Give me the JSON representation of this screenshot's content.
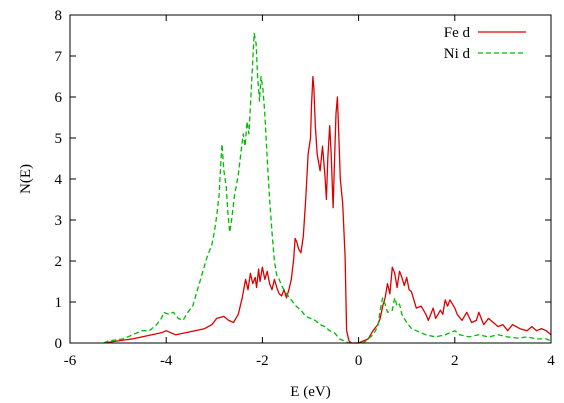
{
  "chart_data": {
    "type": "line",
    "title": "",
    "xlabel": "E (eV)",
    "ylabel": "N(E)",
    "xlim": [
      -6,
      4
    ],
    "ylim": [
      0,
      8
    ],
    "xticks": [
      -6,
      -4,
      -2,
      0,
      2,
      4
    ],
    "yticks": [
      0,
      1,
      2,
      3,
      4,
      5,
      6,
      7,
      8
    ],
    "xtick_labels": [
      "-6",
      "-4",
      "-2",
      "0",
      "2",
      "4"
    ],
    "ytick_labels": [
      "0",
      "1",
      "2",
      "3",
      "4",
      "5",
      "6",
      "7",
      "8"
    ],
    "grid": false,
    "legend_position": "top-right",
    "series": [
      {
        "name": "Fe d",
        "color": "#dd0000",
        "dash": "solid",
        "points": [
          [
            -5.3,
            0.0
          ],
          [
            -5.0,
            0.05
          ],
          [
            -4.7,
            0.1
          ],
          [
            -4.5,
            0.15
          ],
          [
            -4.3,
            0.2
          ],
          [
            -4.1,
            0.25
          ],
          [
            -4.0,
            0.3
          ],
          [
            -3.9,
            0.25
          ],
          [
            -3.8,
            0.2
          ],
          [
            -3.6,
            0.25
          ],
          [
            -3.4,
            0.3
          ],
          [
            -3.2,
            0.35
          ],
          [
            -3.05,
            0.45
          ],
          [
            -2.95,
            0.6
          ],
          [
            -2.8,
            0.65
          ],
          [
            -2.7,
            0.55
          ],
          [
            -2.6,
            0.5
          ],
          [
            -2.5,
            0.7
          ],
          [
            -2.42,
            1.1
          ],
          [
            -2.35,
            1.55
          ],
          [
            -2.3,
            1.3
          ],
          [
            -2.25,
            1.7
          ],
          [
            -2.2,
            1.45
          ],
          [
            -2.15,
            1.6
          ],
          [
            -2.12,
            1.35
          ],
          [
            -2.08,
            1.8
          ],
          [
            -2.05,
            1.5
          ],
          [
            -2.0,
            1.85
          ],
          [
            -1.95,
            1.55
          ],
          [
            -1.9,
            1.75
          ],
          [
            -1.85,
            1.45
          ],
          [
            -1.8,
            1.3
          ],
          [
            -1.75,
            1.55
          ],
          [
            -1.7,
            1.35
          ],
          [
            -1.65,
            1.2
          ],
          [
            -1.6,
            1.15
          ],
          [
            -1.55,
            1.3
          ],
          [
            -1.5,
            1.1
          ],
          [
            -1.45,
            1.3
          ],
          [
            -1.4,
            1.55
          ],
          [
            -1.35,
            2.05
          ],
          [
            -1.32,
            2.55
          ],
          [
            -1.28,
            2.45
          ],
          [
            -1.25,
            2.3
          ],
          [
            -1.2,
            2.2
          ],
          [
            -1.15,
            2.6
          ],
          [
            -1.1,
            3.5
          ],
          [
            -1.05,
            4.6
          ],
          [
            -1.0,
            5.0
          ],
          [
            -0.98,
            5.8
          ],
          [
            -0.95,
            6.5
          ],
          [
            -0.93,
            6.2
          ],
          [
            -0.9,
            5.3
          ],
          [
            -0.86,
            4.6
          ],
          [
            -0.8,
            4.2
          ],
          [
            -0.75,
            4.8
          ],
          [
            -0.7,
            4.1
          ],
          [
            -0.67,
            3.5
          ],
          [
            -0.64,
            4.5
          ],
          [
            -0.6,
            5.3
          ],
          [
            -0.57,
            4.6
          ],
          [
            -0.53,
            3.3
          ],
          [
            -0.5,
            4.5
          ],
          [
            -0.47,
            5.6
          ],
          [
            -0.44,
            6.0
          ],
          [
            -0.41,
            5.0
          ],
          [
            -0.38,
            4.0
          ],
          [
            -0.33,
            3.4
          ],
          [
            -0.28,
            2.1
          ],
          [
            -0.25,
            0.3
          ],
          [
            -0.2,
            0.05
          ],
          [
            -0.15,
            0.0
          ],
          [
            0.0,
            0.0
          ],
          [
            0.2,
            0.1
          ],
          [
            0.3,
            0.3
          ],
          [
            0.4,
            0.45
          ],
          [
            0.45,
            0.6
          ],
          [
            0.5,
            0.9
          ],
          [
            0.55,
            1.1
          ],
          [
            0.6,
            1.45
          ],
          [
            0.65,
            1.2
          ],
          [
            0.7,
            1.85
          ],
          [
            0.75,
            1.7
          ],
          [
            0.8,
            1.35
          ],
          [
            0.85,
            1.75
          ],
          [
            0.9,
            1.6
          ],
          [
            0.95,
            1.4
          ],
          [
            1.0,
            1.6
          ],
          [
            1.05,
            1.3
          ],
          [
            1.1,
            1.25
          ],
          [
            1.2,
            0.85
          ],
          [
            1.3,
            0.9
          ],
          [
            1.4,
            0.7
          ],
          [
            1.45,
            0.55
          ],
          [
            1.55,
            0.85
          ],
          [
            1.6,
            0.6
          ],
          [
            1.7,
            0.8
          ],
          [
            1.75,
            0.7
          ],
          [
            1.8,
            1.05
          ],
          [
            1.85,
            0.9
          ],
          [
            1.9,
            1.05
          ],
          [
            2.0,
            0.85
          ],
          [
            2.05,
            0.7
          ],
          [
            2.15,
            0.55
          ],
          [
            2.25,
            0.75
          ],
          [
            2.35,
            0.5
          ],
          [
            2.45,
            0.55
          ],
          [
            2.5,
            0.75
          ],
          [
            2.6,
            0.45
          ],
          [
            2.7,
            0.6
          ],
          [
            2.8,
            0.5
          ],
          [
            2.9,
            0.4
          ],
          [
            3.0,
            0.45
          ],
          [
            3.1,
            0.3
          ],
          [
            3.2,
            0.45
          ],
          [
            3.35,
            0.35
          ],
          [
            3.5,
            0.3
          ],
          [
            3.6,
            0.4
          ],
          [
            3.7,
            0.3
          ],
          [
            3.8,
            0.35
          ],
          [
            3.9,
            0.3
          ],
          [
            4.0,
            0.2
          ]
        ]
      },
      {
        "name": "Ni d",
        "color": "#00bb00",
        "dash": "dashed",
        "points": [
          [
            -5.3,
            0.0
          ],
          [
            -5.2,
            0.05
          ],
          [
            -4.9,
            0.1
          ],
          [
            -4.7,
            0.2
          ],
          [
            -4.5,
            0.3
          ],
          [
            -4.35,
            0.3
          ],
          [
            -4.2,
            0.45
          ],
          [
            -4.1,
            0.6
          ],
          [
            -4.05,
            0.75
          ],
          [
            -3.95,
            0.7
          ],
          [
            -3.85,
            0.75
          ],
          [
            -3.75,
            0.6
          ],
          [
            -3.65,
            0.55
          ],
          [
            -3.55,
            0.75
          ],
          [
            -3.45,
            0.9
          ],
          [
            -3.35,
            1.3
          ],
          [
            -3.25,
            1.7
          ],
          [
            -3.15,
            2.1
          ],
          [
            -3.05,
            2.4
          ],
          [
            -3.0,
            2.7
          ],
          [
            -2.95,
            3.1
          ],
          [
            -2.9,
            3.6
          ],
          [
            -2.87,
            4.3
          ],
          [
            -2.84,
            4.85
          ],
          [
            -2.8,
            4.2
          ],
          [
            -2.75,
            3.8
          ],
          [
            -2.72,
            3.2
          ],
          [
            -2.68,
            2.7
          ],
          [
            -2.64,
            3.0
          ],
          [
            -2.58,
            3.6
          ],
          [
            -2.5,
            4.1
          ],
          [
            -2.44,
            4.7
          ],
          [
            -2.4,
            5.1
          ],
          [
            -2.36,
            4.8
          ],
          [
            -2.32,
            5.4
          ],
          [
            -2.28,
            5.1
          ],
          [
            -2.24,
            6.0
          ],
          [
            -2.2,
            6.9
          ],
          [
            -2.17,
            7.55
          ],
          [
            -2.13,
            7.3
          ],
          [
            -2.1,
            6.5
          ],
          [
            -2.06,
            5.9
          ],
          [
            -2.03,
            6.5
          ],
          [
            -1.99,
            6.2
          ],
          [
            -1.95,
            5.6
          ],
          [
            -1.9,
            4.5
          ],
          [
            -1.85,
            3.5
          ],
          [
            -1.8,
            2.7
          ],
          [
            -1.75,
            2.0
          ],
          [
            -1.7,
            1.65
          ],
          [
            -1.65,
            1.55
          ],
          [
            -1.6,
            1.4
          ],
          [
            -1.5,
            1.2
          ],
          [
            -1.4,
            1.05
          ],
          [
            -1.3,
            0.9
          ],
          [
            -1.2,
            0.8
          ],
          [
            -1.1,
            0.65
          ],
          [
            -1.0,
            0.6
          ],
          [
            -0.9,
            0.55
          ],
          [
            -0.8,
            0.45
          ],
          [
            -0.7,
            0.4
          ],
          [
            -0.6,
            0.3
          ],
          [
            -0.5,
            0.25
          ],
          [
            -0.4,
            0.1
          ],
          [
            -0.3,
            0.05
          ],
          [
            -0.2,
            0.0
          ],
          [
            0.1,
            0.0
          ],
          [
            0.2,
            0.1
          ],
          [
            0.3,
            0.2
          ],
          [
            0.4,
            0.4
          ],
          [
            0.45,
            0.8
          ],
          [
            0.5,
            1.1
          ],
          [
            0.55,
            0.95
          ],
          [
            0.6,
            0.75
          ],
          [
            0.7,
            0.8
          ],
          [
            0.75,
            1.1
          ],
          [
            0.8,
            0.9
          ],
          [
            0.85,
            0.95
          ],
          [
            0.9,
            0.7
          ],
          [
            1.0,
            0.5
          ],
          [
            1.1,
            0.35
          ],
          [
            1.2,
            0.3
          ],
          [
            1.3,
            0.25
          ],
          [
            1.4,
            0.2
          ],
          [
            1.6,
            0.15
          ],
          [
            1.8,
            0.2
          ],
          [
            2.0,
            0.3
          ],
          [
            2.1,
            0.2
          ],
          [
            2.3,
            0.15
          ],
          [
            2.5,
            0.2
          ],
          [
            2.7,
            0.15
          ],
          [
            2.9,
            0.2
          ],
          [
            3.1,
            0.15
          ],
          [
            3.3,
            0.12
          ],
          [
            3.5,
            0.15
          ],
          [
            3.7,
            0.1
          ],
          [
            3.9,
            0.1
          ],
          [
            4.0,
            0.05
          ]
        ]
      }
    ]
  }
}
